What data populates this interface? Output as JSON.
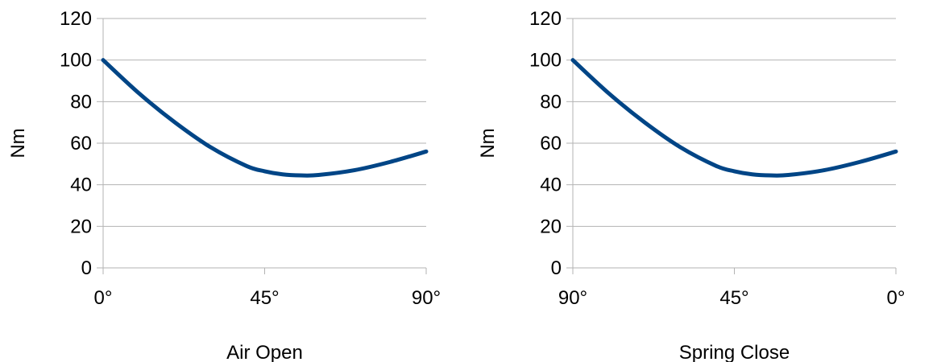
{
  "chart_data": [
    {
      "type": "line",
      "title": "",
      "xlabel": "Air Open",
      "ylabel": "Nm",
      "ylim": [
        0,
        120
      ],
      "yticks": [
        0,
        20,
        40,
        60,
        80,
        100,
        120
      ],
      "xlim": [
        0,
        90
      ],
      "xticks": [
        0,
        45,
        90
      ],
      "xtick_labels": [
        "0°",
        "45°",
        "90°"
      ],
      "x_direction": "ascending",
      "grid": "horizontal",
      "legend": "none",
      "series": [
        {
          "color": "#004586",
          "x": [
            0,
            10,
            20,
            30,
            40,
            45,
            50,
            55,
            60,
            70,
            80,
            90
          ],
          "values": [
            100,
            84,
            70,
            58,
            49,
            46.5,
            45,
            44.5,
            44.7,
            47,
            51,
            56
          ]
        }
      ]
    },
    {
      "type": "line",
      "title": "",
      "xlabel": "Spring Close",
      "ylabel": "Nm",
      "ylim": [
        0,
        120
      ],
      "yticks": [
        0,
        20,
        40,
        60,
        80,
        100,
        120
      ],
      "xlim": [
        90,
        0
      ],
      "xticks": [
        90,
        45,
        0
      ],
      "xtick_labels": [
        "90°",
        "45°",
        "0°"
      ],
      "x_direction": "descending",
      "grid": "horizontal",
      "legend": "none",
      "series": [
        {
          "color": "#004586",
          "x": [
            90,
            80,
            70,
            60,
            50,
            45,
            40,
            35,
            30,
            20,
            10,
            0
          ],
          "values": [
            100,
            84,
            70,
            58,
            49,
            46.5,
            45,
            44.5,
            44.7,
            47,
            51,
            56
          ]
        }
      ]
    }
  ]
}
